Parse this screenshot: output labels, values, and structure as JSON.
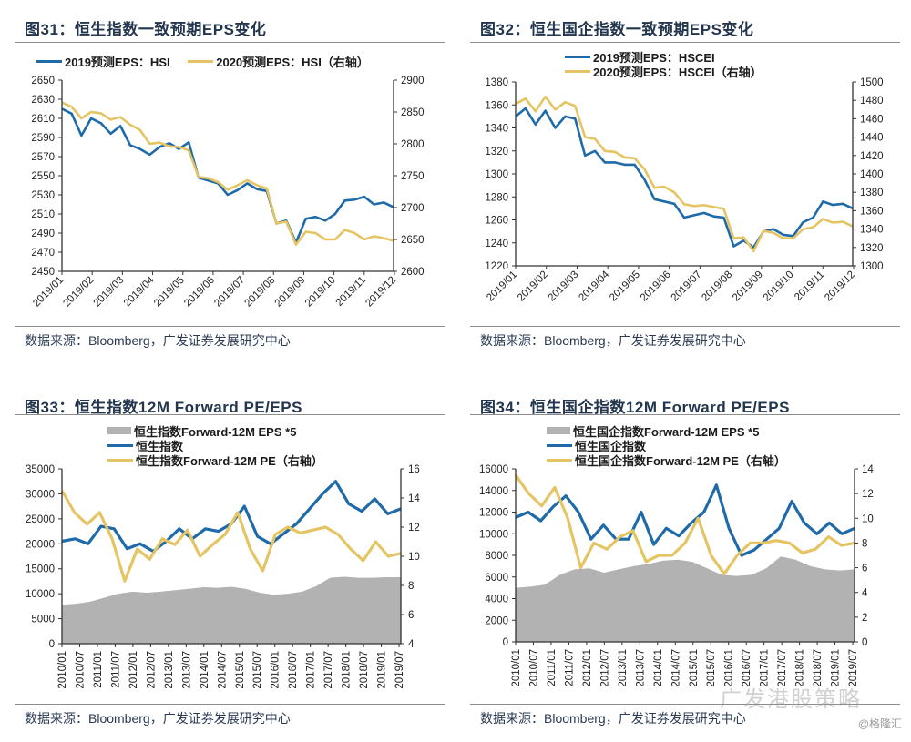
{
  "colors": {
    "blue": "#1f6aa8",
    "gold": "#e5c463",
    "gray_area": "#b2b2b2",
    "title": "#23364e",
    "axis": "#333333"
  },
  "panels": [
    {
      "title": "图31：恒生指数一致预期EPS变化",
      "source": "数据来源：Bloomberg，广发证券发展研究中心",
      "legend": [
        "2019预测EPS：HSI",
        "2020预测EPS：HSI（右轴）"
      ]
    },
    {
      "title": "图32：恒生国企指数一致预期EPS变化",
      "source": "数据来源：Bloomberg，广发证券发展研究中心",
      "legend": [
        "2019预测EPS：HSCEI",
        "2020预测EPS：HSCEI（右轴）"
      ]
    },
    {
      "title": "图33：恒生指数12M Forward PE/EPS",
      "source": "数据来源：Bloomberg，广发证券发展研究中心",
      "legend": [
        "恒生指数Forward-12M EPS *5",
        "恒生指数",
        "恒生指数Forward-12M PE（右轴）"
      ]
    },
    {
      "title": "图34：恒生国企指数12M Forward PE/EPS",
      "source": "数据来源：Bloomberg，广发证券发展研究中心",
      "legend": [
        "恒生国企指数Forward-12M EPS *5",
        "恒生国企指数",
        "恒生国企指数Forward-12M PE（右轴）"
      ]
    }
  ],
  "watermark": {
    "channel": "广发港股策略",
    "credit": "@格隆汇"
  },
  "chart_data": [
    {
      "type": "line",
      "title": "图31：恒生指数一致预期EPS变化",
      "x": [
        "2019/01",
        "2019/02",
        "2019/03",
        "2019/04",
        "2019/05",
        "2019/06",
        "2019/07",
        "2019/08",
        "2019/09",
        "2019/10",
        "2019/11",
        "2019/12"
      ],
      "xlabel": "",
      "ylabel": "",
      "ylim": [
        2450,
        2650
      ],
      "yticks": [
        2450,
        2470,
        2490,
        2510,
        2530,
        2550,
        2570,
        2590,
        2610,
        2630,
        2650
      ],
      "y2lim": [
        2600,
        2900
      ],
      "y2ticks": [
        2600,
        2650,
        2700,
        2750,
        2800,
        2850,
        2900
      ],
      "legend_position": "top",
      "series": [
        {
          "name": "2019预测EPS：HSI",
          "axis": "left",
          "color": "blue",
          "values": [
            2620,
            2615,
            2592,
            2610,
            2605,
            2594,
            2602,
            2582,
            2578,
            2572,
            2580,
            2584,
            2578,
            2585,
            2548,
            2545,
            2542,
            2530,
            2535,
            2542,
            2536,
            2534,
            2500,
            2503,
            2480,
            2505,
            2507,
            2503,
            2510,
            2524,
            2525,
            2528,
            2520,
            2522,
            2517
          ]
        },
        {
          "name": "2020预测EPS：HSI（右轴）",
          "axis": "right",
          "color": "gold",
          "values": [
            2865,
            2858,
            2840,
            2850,
            2848,
            2838,
            2842,
            2830,
            2822,
            2800,
            2802,
            2796,
            2795,
            2790,
            2748,
            2746,
            2740,
            2728,
            2735,
            2743,
            2735,
            2730,
            2675,
            2678,
            2642,
            2662,
            2660,
            2650,
            2650,
            2665,
            2660,
            2650,
            2655,
            2652,
            2648
          ]
        }
      ]
    },
    {
      "type": "line",
      "title": "图32：恒生国企指数一致预期EPS变化",
      "x": [
        "2019/01",
        "2019/02",
        "2019/03",
        "2019/04",
        "2019/05",
        "2019/06",
        "2019/07",
        "2019/08",
        "2019/09",
        "2019/10",
        "2019/11",
        "2019/12"
      ],
      "xlabel": "",
      "ylabel": "",
      "ylim": [
        1220,
        1380
      ],
      "yticks": [
        1220,
        1240,
        1260,
        1280,
        1300,
        1320,
        1340,
        1360,
        1380
      ],
      "y2lim": [
        1300,
        1500
      ],
      "y2ticks": [
        1300,
        1320,
        1340,
        1360,
        1380,
        1400,
        1420,
        1440,
        1460,
        1480,
        1500
      ],
      "legend_position": "top",
      "series": [
        {
          "name": "2019预测EPS：HSCEI",
          "axis": "left",
          "color": "blue",
          "values": [
            1350,
            1357,
            1343,
            1355,
            1340,
            1350,
            1348,
            1316,
            1320,
            1310,
            1310,
            1308,
            1308,
            1295,
            1278,
            1276,
            1274,
            1262,
            1264,
            1266,
            1263,
            1262,
            1237,
            1242,
            1236,
            1250,
            1252,
            1247,
            1246,
            1258,
            1262,
            1276,
            1273,
            1274,
            1270
          ]
        },
        {
          "name": "2020预测EPS：HSCEI（右轴）",
          "axis": "right",
          "color": "gold",
          "values": [
            1476,
            1482,
            1468,
            1484,
            1470,
            1478,
            1474,
            1440,
            1438,
            1425,
            1424,
            1418,
            1417,
            1405,
            1385,
            1386,
            1380,
            1367,
            1365,
            1366,
            1364,
            1362,
            1330,
            1331,
            1316,
            1338,
            1336,
            1330,
            1330,
            1340,
            1342,
            1351,
            1347,
            1348,
            1343
          ]
        }
      ]
    },
    {
      "type": "area",
      "title": "图33：恒生指数12M Forward PE/EPS",
      "x": [
        "2010/01",
        "2010/07",
        "2011/01",
        "2011/07",
        "2012/01",
        "2012/07",
        "2013/01",
        "2013/07",
        "2014/01",
        "2014/07",
        "2015/01",
        "2015/07",
        "2016/01",
        "2016/07",
        "2017/01",
        "2017/07",
        "2018/01",
        "2018/07",
        "2019/01",
        "2019/07"
      ],
      "xlabel": "",
      "ylabel": "",
      "ylim": [
        0,
        35000
      ],
      "yticks": [
        0,
        5000,
        10000,
        15000,
        20000,
        25000,
        30000,
        35000
      ],
      "y2lim": [
        4,
        16
      ],
      "y2ticks": [
        4,
        6,
        8,
        10,
        12,
        14,
        16
      ],
      "legend_position": "top",
      "series": [
        {
          "name": "恒生指数Forward-12M EPS *5",
          "axis": "left",
          "color": "gray_area",
          "kind": "area",
          "values": [
            7800,
            8000,
            8400,
            9200,
            10000,
            10400,
            10200,
            10400,
            10700,
            11000,
            11300,
            11200,
            11400,
            11000,
            10200,
            9800,
            10000,
            10400,
            11500,
            13200,
            13400,
            13200,
            13200,
            13300,
            13300
          ]
        },
        {
          "name": "恒生指数",
          "axis": "left",
          "color": "blue",
          "kind": "line",
          "values": [
            20500,
            21000,
            20000,
            23500,
            23000,
            19000,
            20000,
            18500,
            20500,
            23000,
            21000,
            23000,
            22500,
            24000,
            27500,
            21500,
            20000,
            22000,
            24000,
            27000,
            30000,
            32500,
            28000,
            26500,
            29000,
            26000,
            27000
          ]
        },
        {
          "name": "恒生指数Forward-12M PE（右轴）",
          "axis": "right",
          "color": "gold",
          "kind": "line",
          "values": [
            14.5,
            13.0,
            12.2,
            13.0,
            11.2,
            8.3,
            10.5,
            9.8,
            11.2,
            10.8,
            11.8,
            10.0,
            10.8,
            11.5,
            13.0,
            10.5,
            9.0,
            11.5,
            12.0,
            11.6,
            11.8,
            12.0,
            11.5,
            10.5,
            9.7,
            11.0,
            10.0,
            10.2
          ]
        }
      ]
    },
    {
      "type": "area",
      "title": "图34：恒生国企指数12M Forward PE/EPS",
      "x": [
        "2010/01",
        "2010/07",
        "2011/01",
        "2011/07",
        "2012/01",
        "2012/07",
        "2013/01",
        "2013/07",
        "2014/01",
        "2014/07",
        "2015/01",
        "2015/07",
        "2016/01",
        "2016/07",
        "2017/01",
        "2017/07",
        "2018/01",
        "2018/07",
        "2019/01",
        "2019/07"
      ],
      "xlabel": "",
      "ylabel": "",
      "ylim": [
        0,
        16000
      ],
      "yticks": [
        0,
        2000,
        4000,
        6000,
        8000,
        10000,
        12000,
        14000,
        16000
      ],
      "y2lim": [
        0,
        14
      ],
      "y2ticks": [
        0,
        2,
        4,
        6,
        8,
        10,
        12,
        14
      ],
      "legend_position": "top",
      "series": [
        {
          "name": "恒生国企指数Forward-12M EPS *5",
          "axis": "left",
          "color": "gray_area",
          "kind": "area",
          "values": [
            5000,
            5100,
            5300,
            6200,
            6700,
            6800,
            6400,
            6700,
            7000,
            7200,
            7500,
            7600,
            7400,
            6800,
            6200,
            6100,
            6200,
            6800,
            7900,
            7600,
            7000,
            6700,
            6600,
            6700
          ]
        },
        {
          "name": "恒生国企指数",
          "axis": "left",
          "color": "blue",
          "kind": "line",
          "values": [
            11500,
            12000,
            11200,
            12500,
            13500,
            12000,
            9500,
            10800,
            9500,
            9500,
            12000,
            9000,
            10500,
            9800,
            11000,
            12000,
            14500,
            10500,
            8000,
            8500,
            9500,
            10500,
            13000,
            11000,
            10000,
            11000,
            10000,
            10500
          ]
        },
        {
          "name": "恒生国企指数Forward-12M PE（右轴）",
          "axis": "right",
          "color": "gold",
          "kind": "line",
          "values": [
            13.5,
            12.0,
            11.0,
            12.5,
            10.0,
            6.0,
            8.0,
            7.5,
            8.5,
            9.0,
            6.5,
            7.0,
            7.0,
            8.0,
            10.0,
            7.0,
            5.5,
            7.0,
            8.0,
            8.0,
            8.2,
            8.0,
            7.2,
            7.5,
            8.5,
            7.8,
            8.0
          ]
        }
      ]
    }
  ]
}
